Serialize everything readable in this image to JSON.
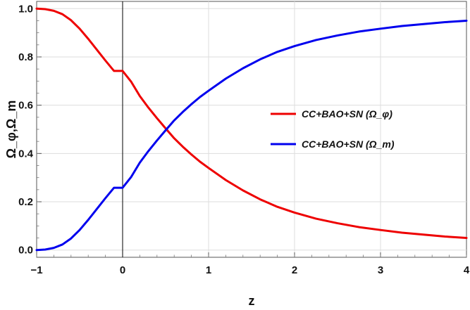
{
  "chart_data": {
    "type": "line",
    "xlabel": "z",
    "ylabel": "Ω_φ,Ω_m",
    "xlim": [
      -1,
      4
    ],
    "ylim": [
      -0.03,
      1.03
    ],
    "x_ticks": [
      "−1",
      "0",
      "1",
      "2",
      "3",
      "4"
    ],
    "y_ticks": [
      "0.0",
      "0.2",
      "0.4",
      "0.6",
      "0.8",
      "1.0"
    ],
    "grid": true,
    "legend_position": "right",
    "x": [
      -1.0,
      -0.9,
      -0.8,
      -0.7,
      -0.6,
      -0.5,
      -0.4,
      -0.3,
      -0.2,
      -0.1,
      0.0,
      0.1,
      0.2,
      0.3,
      0.4,
      0.5,
      0.6,
      0.7,
      0.8,
      0.9,
      1.0,
      1.2,
      1.4,
      1.6,
      1.8,
      2.0,
      2.25,
      2.5,
      2.75,
      3.0,
      3.25,
      3.5,
      3.75,
      4.0
    ],
    "series": [
      {
        "name": "CC+BAO+SN (Ω_φ)",
        "color": "#ee0000",
        "values": [
          1.0,
          0.998,
          0.991,
          0.977,
          0.952,
          0.917,
          0.875,
          0.83,
          0.785,
          0.742,
          0.742,
          0.697,
          0.638,
          0.59,
          0.546,
          0.504,
          0.463,
          0.428,
          0.396,
          0.366,
          0.34,
          0.29,
          0.247,
          0.21,
          0.179,
          0.155,
          0.13,
          0.111,
          0.095,
          0.083,
          0.072,
          0.064,
          0.056,
          0.05
        ]
      },
      {
        "name": "CC+BAO+SN (Ω_m)",
        "color": "#0000ee",
        "values": [
          0.0,
          0.002,
          0.009,
          0.023,
          0.048,
          0.083,
          0.125,
          0.17,
          0.215,
          0.258,
          0.258,
          0.303,
          0.362,
          0.41,
          0.454,
          0.496,
          0.537,
          0.572,
          0.604,
          0.634,
          0.66,
          0.71,
          0.753,
          0.79,
          0.821,
          0.845,
          0.87,
          0.889,
          0.905,
          0.917,
          0.928,
          0.936,
          0.944,
          0.95
        ]
      }
    ]
  }
}
